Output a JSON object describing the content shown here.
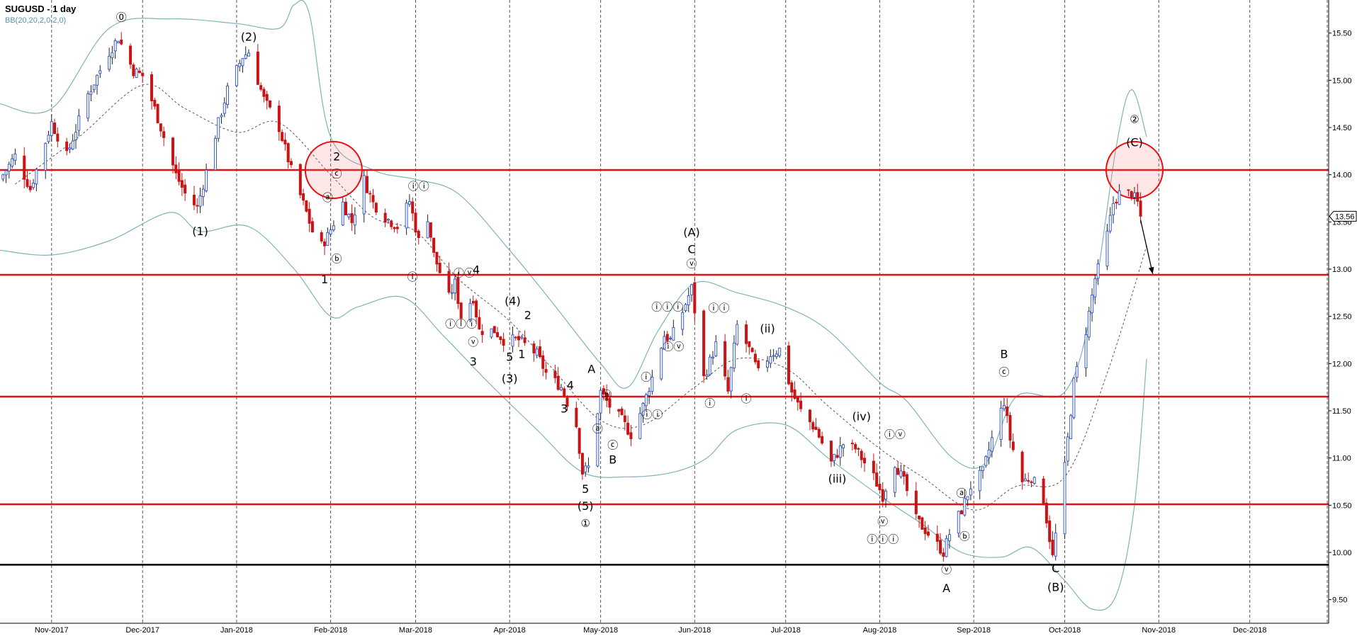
{
  "window": {
    "title": "SUGUSD - 1 day",
    "indicator": "BB(20,20,2,0,2,0)"
  },
  "colors": {
    "up_candle": "#3b5fc9",
    "down_candle": "#c81414",
    "bollinger": "#7fb3b8",
    "middle_band": "#555555",
    "resistance_line": "#e81010",
    "support_line": "#000000",
    "grid": "#555555",
    "price_tag": "#000000"
  },
  "chart_data": {
    "type": "candlestick",
    "title": "SUGUSD - 1 day",
    "indicator": "BB(20,20,2,0,2,0)",
    "ylim": [
      9.25,
      15.85
    ],
    "y_ticks": [
      "15.50",
      "15.00",
      "14.50",
      "14.00",
      "13.50",
      "13.00",
      "12.50",
      "12.00",
      "11.50",
      "11.00",
      "10.50",
      "10.00",
      "9.50"
    ],
    "x_ticks": [
      "Nov-2017",
      "Dec-2017",
      "Jan-2018",
      "Feb-2018",
      "Mar-2018",
      "Apr-2018",
      "May-2018",
      "Jun-2018",
      "Jul-2018",
      "Aug-2018",
      "Sep-2018",
      "Oct-2018",
      "Nov-2018",
      "Dec-2018"
    ],
    "x_domain": [
      "2017-10-15",
      "2018-12-27"
    ],
    "last_price": "13.56",
    "horizontal_lines": [
      {
        "value": 14.05,
        "style": "resistance"
      },
      {
        "value": 12.94,
        "style": "resistance"
      },
      {
        "value": 11.65,
        "style": "resistance"
      },
      {
        "value": 10.51,
        "style": "resistance"
      },
      {
        "value": 9.87,
        "style": "support"
      }
    ],
    "circles": [
      {
        "date": "2018-02-02",
        "price": 14.05
      },
      {
        "date": "2018-10-24",
        "price": 14.05
      }
    ],
    "arrow": {
      "from": [
        "2018-10-26",
        13.52
      ],
      "to": [
        "2018-10-30",
        12.95
      ]
    },
    "price_path": [
      [
        "2017-10-15",
        13.95
      ],
      [
        "2017-10-20",
        14.2
      ],
      [
        "2017-10-25",
        13.85
      ],
      [
        "2017-11-01",
        14.55
      ],
      [
        "2017-11-06",
        14.2
      ],
      [
        "2017-11-13",
        14.85
      ],
      [
        "2017-11-20",
        15.3
      ],
      [
        "2017-11-23",
        15.45
      ],
      [
        "2017-11-28",
        15.1
      ],
      [
        "2017-12-01",
        15.05
      ],
      [
        "2017-12-05",
        14.7
      ],
      [
        "2017-12-08",
        14.4
      ],
      [
        "2017-12-12",
        14.0
      ],
      [
        "2017-12-15",
        13.8
      ],
      [
        "2017-12-19",
        13.65
      ],
      [
        "2017-12-21",
        13.9
      ],
      [
        "2017-12-26",
        14.55
      ],
      [
        "2017-12-29",
        14.9
      ],
      [
        "2018-01-03",
        15.25
      ],
      [
        "2018-01-05",
        15.3
      ],
      [
        "2018-01-10",
        14.8
      ],
      [
        "2018-01-15",
        14.5
      ],
      [
        "2018-01-19",
        14.05
      ],
      [
        "2018-01-24",
        13.6
      ],
      [
        "2018-01-28",
        13.2
      ],
      [
        "2018-01-31",
        13.35
      ],
      [
        "2018-02-05",
        13.7
      ],
      [
        "2018-02-08",
        13.5
      ],
      [
        "2018-02-12",
        13.95
      ],
      [
        "2018-02-15",
        13.7
      ],
      [
        "2018-02-19",
        13.55
      ],
      [
        "2018-02-23",
        13.45
      ],
      [
        "2018-02-27",
        13.72
      ],
      [
        "2018-03-02",
        13.3
      ],
      [
        "2018-03-05",
        13.55
      ],
      [
        "2018-03-07",
        13.15
      ],
      [
        "2018-03-12",
        12.7
      ],
      [
        "2018-03-14",
        12.85
      ],
      [
        "2018-03-16",
        12.5
      ],
      [
        "2018-03-20",
        12.7
      ],
      [
        "2018-03-22",
        12.35
      ],
      [
        "2018-03-27",
        12.35
      ],
      [
        "2018-03-30",
        12.25
      ],
      [
        "2018-04-04",
        12.25
      ],
      [
        "2018-04-10",
        12.1
      ],
      [
        "2018-04-13",
        11.9
      ],
      [
        "2018-04-18",
        11.75
      ],
      [
        "2018-04-23",
        11.35
      ],
      [
        "2018-04-25",
        10.85
      ],
      [
        "2018-04-27",
        10.9
      ],
      [
        "2018-05-01",
        11.7
      ],
      [
        "2018-05-04",
        11.55
      ],
      [
        "2018-05-08",
        11.4
      ],
      [
        "2018-05-11",
        11.25
      ],
      [
        "2018-05-15",
        11.55
      ],
      [
        "2018-05-18",
        11.85
      ],
      [
        "2018-05-22",
        12.3
      ],
      [
        "2018-05-24",
        12.25
      ],
      [
        "2018-05-28",
        12.55
      ],
      [
        "2018-05-31",
        12.8
      ],
      [
        "2018-06-04",
        11.85
      ],
      [
        "2018-06-08",
        12.2
      ],
      [
        "2018-06-12",
        11.7
      ],
      [
        "2018-06-15",
        12.4
      ],
      [
        "2018-06-19",
        12.15
      ],
      [
        "2018-06-22",
        11.9
      ],
      [
        "2018-06-26",
        12.1
      ],
      [
        "2018-06-29",
        12.15
      ],
      [
        "2018-07-03",
        11.7
      ],
      [
        "2018-07-06",
        11.5
      ],
      [
        "2018-07-11",
        11.3
      ],
      [
        "2018-07-16",
        10.95
      ],
      [
        "2018-07-20",
        11.15
      ],
      [
        "2018-07-24",
        11.1
      ],
      [
        "2018-07-30",
        10.8
      ],
      [
        "2018-08-02",
        10.6
      ],
      [
        "2018-08-06",
        10.95
      ],
      [
        "2018-08-09",
        10.75
      ],
      [
        "2018-08-13",
        10.35
      ],
      [
        "2018-08-17",
        10.2
      ],
      [
        "2018-08-22",
        10.0
      ],
      [
        "2018-08-24",
        10.2
      ],
      [
        "2018-08-28",
        10.45
      ],
      [
        "2018-08-31",
        10.7
      ],
      [
        "2018-09-04",
        10.85
      ],
      [
        "2018-09-07",
        11.2
      ],
      [
        "2018-09-11",
        11.6
      ],
      [
        "2018-09-13",
        11.2
      ],
      [
        "2018-09-17",
        10.75
      ],
      [
        "2018-09-20",
        10.8
      ],
      [
        "2018-09-24",
        10.55
      ],
      [
        "2018-09-27",
        9.95
      ],
      [
        "2018-10-01",
        10.9
      ],
      [
        "2018-10-04",
        11.8
      ],
      [
        "2018-10-08",
        12.35
      ],
      [
        "2018-10-11",
        12.9
      ],
      [
        "2018-10-14",
        13.2
      ],
      [
        "2018-10-17",
        13.7
      ],
      [
        "2018-10-19",
        13.8
      ],
      [
        "2018-10-23",
        13.8
      ],
      [
        "2018-10-25",
        13.7
      ],
      [
        "2018-10-26",
        13.56
      ]
    ],
    "bollinger_upper": [
      [
        "2017-10-15",
        14.75
      ],
      [
        "2017-11-01",
        14.7
      ],
      [
        "2017-11-20",
        15.55
      ],
      [
        "2017-12-10",
        15.65
      ],
      [
        "2018-01-01",
        15.6
      ],
      [
        "2018-01-15",
        15.55
      ],
      [
        "2018-01-20",
        15.8
      ],
      [
        "2018-01-25",
        15.7
      ],
      [
        "2018-02-01",
        14.4
      ],
      [
        "2018-02-15",
        14.05
      ],
      [
        "2018-03-01",
        13.95
      ],
      [
        "2018-03-15",
        13.8
      ],
      [
        "2018-04-01",
        13.2
      ],
      [
        "2018-04-15",
        12.65
      ],
      [
        "2018-05-01",
        12.0
      ],
      [
        "2018-05-10",
        11.75
      ],
      [
        "2018-05-20",
        12.35
      ],
      [
        "2018-06-01",
        12.85
      ],
      [
        "2018-06-15",
        12.75
      ],
      [
        "2018-07-01",
        12.6
      ],
      [
        "2018-07-15",
        12.35
      ],
      [
        "2018-08-01",
        11.8
      ],
      [
        "2018-08-10",
        11.6
      ],
      [
        "2018-08-25",
        11.0
      ],
      [
        "2018-09-05",
        10.95
      ],
      [
        "2018-09-15",
        11.65
      ],
      [
        "2018-10-01",
        11.7
      ],
      [
        "2018-10-10",
        12.6
      ],
      [
        "2018-10-18",
        14.3
      ],
      [
        "2018-10-23",
        14.9
      ],
      [
        "2018-10-28",
        14.4
      ]
    ],
    "bollinger_lower": [
      [
        "2017-10-15",
        13.2
      ],
      [
        "2017-11-01",
        13.15
      ],
      [
        "2017-11-20",
        13.3
      ],
      [
        "2017-12-10",
        13.6
      ],
      [
        "2017-12-20",
        13.4
      ],
      [
        "2018-01-05",
        13.45
      ],
      [
        "2018-01-20",
        13.0
      ],
      [
        "2018-02-01",
        12.5
      ],
      [
        "2018-02-10",
        12.6
      ],
      [
        "2018-02-25",
        12.7
      ],
      [
        "2018-03-10",
        12.3
      ],
      [
        "2018-03-25",
        11.8
      ],
      [
        "2018-04-10",
        11.3
      ],
      [
        "2018-04-25",
        10.85
      ],
      [
        "2018-05-10",
        10.8
      ],
      [
        "2018-05-25",
        10.85
      ],
      [
        "2018-06-05",
        11.0
      ],
      [
        "2018-06-15",
        11.3
      ],
      [
        "2018-07-01",
        11.35
      ],
      [
        "2018-07-15",
        11.0
      ],
      [
        "2018-08-01",
        10.6
      ],
      [
        "2018-08-15",
        10.3
      ],
      [
        "2018-08-28",
        10.0
      ],
      [
        "2018-09-10",
        9.95
      ],
      [
        "2018-09-20",
        10.05
      ],
      [
        "2018-10-01",
        9.7
      ],
      [
        "2018-10-10",
        9.4
      ],
      [
        "2018-10-18",
        9.55
      ],
      [
        "2018-10-24",
        10.5
      ],
      [
        "2018-10-28",
        12.05
      ]
    ],
    "bollinger_middle": [
      [
        "2017-10-20",
        13.9
      ],
      [
        "2017-11-10",
        14.4
      ],
      [
        "2017-12-01",
        14.95
      ],
      [
        "2017-12-15",
        14.7
      ],
      [
        "2018-01-01",
        14.45
      ],
      [
        "2018-01-15",
        14.55
      ],
      [
        "2018-02-01",
        14.0
      ],
      [
        "2018-02-15",
        13.55
      ],
      [
        "2018-03-01",
        13.4
      ],
      [
        "2018-03-15",
        12.9
      ],
      [
        "2018-04-01",
        12.45
      ],
      [
        "2018-04-15",
        11.95
      ],
      [
        "2018-05-01",
        11.4
      ],
      [
        "2018-05-15",
        11.35
      ],
      [
        "2018-06-01",
        11.75
      ],
      [
        "2018-06-15",
        12.05
      ],
      [
        "2018-07-01",
        11.95
      ],
      [
        "2018-07-15",
        11.55
      ],
      [
        "2018-08-01",
        11.1
      ],
      [
        "2018-08-15",
        10.8
      ],
      [
        "2018-09-01",
        10.45
      ],
      [
        "2018-09-15",
        10.7
      ],
      [
        "2018-10-01",
        10.8
      ],
      [
        "2018-10-15",
        11.9
      ],
      [
        "2018-10-28",
        13.25
      ]
    ],
    "wave_labels": [
      {
        "text": "⓪",
        "date": "2017-11-24",
        "price": 15.63
      },
      {
        "text": "(2)",
        "date": "2018-01-05",
        "price": 15.42
      },
      {
        "text": "(1)",
        "date": "2017-12-20",
        "price": 13.36
      },
      {
        "text": "1",
        "date": "2018-01-30",
        "price": 12.85
      },
      {
        "text": "2",
        "date": "2018-02-03",
        "price": 14.15
      },
      {
        "text": "ⓒ",
        "date": "2018-02-03",
        "price": 13.97
      },
      {
        "text": "ⓐ",
        "date": "2018-01-31",
        "price": 13.72
      },
      {
        "text": "ⓑ",
        "date": "2018-02-03",
        "price": 13.07
      },
      {
        "text": "ⓘⓘ",
        "date": "2018-03-02",
        "price": 13.84
      },
      {
        "text": "ⓘ",
        "date": "2018-02-28",
        "price": 12.88
      },
      {
        "text": "ⓘⓥ",
        "date": "2018-03-17",
        "price": 12.92
      },
      {
        "text": "4",
        "date": "2018-03-21",
        "price": 12.95
      },
      {
        "text": "ⓘⓘⓘ",
        "date": "2018-03-16",
        "price": 12.38
      },
      {
        "text": "ⓥ",
        "date": "2018-03-20",
        "price": 12.19
      },
      {
        "text": "3",
        "date": "2018-03-20",
        "price": 11.98
      },
      {
        "text": "(4)",
        "date": "2018-04-02",
        "price": 12.62
      },
      {
        "text": "2",
        "date": "2018-04-07",
        "price": 12.47
      },
      {
        "text": "5",
        "date": "2018-04-01",
        "price": 12.03
      },
      {
        "text": "1",
        "date": "2018-04-05",
        "price": 12.06
      },
      {
        "text": "(3)",
        "date": "2018-04-01",
        "price": 11.8
      },
      {
        "text": "4",
        "date": "2018-04-21",
        "price": 11.73
      },
      {
        "text": "3",
        "date": "2018-04-19",
        "price": 11.48
      },
      {
        "text": "A",
        "date": "2018-04-28",
        "price": 11.9
      },
      {
        "text": "ⓑ",
        "date": "2018-05-03",
        "price": 11.63
      },
      {
        "text": "ⓐ",
        "date": "2018-04-30",
        "price": 11.27
      },
      {
        "text": "ⓒ",
        "date": "2018-05-05",
        "price": 11.1
      },
      {
        "text": "B",
        "date": "2018-05-05",
        "price": 10.94
      },
      {
        "text": "5",
        "date": "2018-04-26",
        "price": 10.63
      },
      {
        "text": "(5)",
        "date": "2018-04-26",
        "price": 10.45
      },
      {
        "text": "①",
        "date": "2018-04-26",
        "price": 10.27
      },
      {
        "text": "ⓘ",
        "date": "2018-05-16",
        "price": 11.82
      },
      {
        "text": "ⓘⓘ",
        "date": "2018-05-18",
        "price": 11.42
      },
      {
        "text": "ⓘⓘⓘ",
        "date": "2018-05-23",
        "price": 12.56
      },
      {
        "text": "ⓘⓥ",
        "date": "2018-05-25",
        "price": 12.14
      },
      {
        "text": "(A)",
        "date": "2018-05-31",
        "price": 13.35
      },
      {
        "text": "C",
        "date": "2018-05-31",
        "price": 13.17
      },
      {
        "text": "ⓥ",
        "date": "2018-05-31",
        "price": 13.02
      },
      {
        "text": "ⓘⓘ",
        "date": "2018-06-09",
        "price": 12.55
      },
      {
        "text": "ⓘ",
        "date": "2018-06-06",
        "price": 11.54
      },
      {
        "text": "ⓘ",
        "date": "2018-06-18",
        "price": 11.59
      },
      {
        "text": "(ii)",
        "date": "2018-06-25",
        "price": 12.33
      },
      {
        "text": "(iv)",
        "date": "2018-07-26",
        "price": 11.4
      },
      {
        "text": "ⓘⓥ",
        "date": "2018-08-06",
        "price": 11.21
      },
      {
        "text": "(iii)",
        "date": "2018-07-18",
        "price": 10.74
      },
      {
        "text": "ⓥ",
        "date": "2018-08-02",
        "price": 10.29
      },
      {
        "text": "ⓘⓘⓘ",
        "date": "2018-08-02",
        "price": 10.1
      },
      {
        "text": "ⓐ",
        "date": "2018-08-28",
        "price": 10.59
      },
      {
        "text": "ⓑ",
        "date": "2018-08-29",
        "price": 10.13
      },
      {
        "text": "ⓥ",
        "date": "2018-08-23",
        "price": 9.78
      },
      {
        "text": "A",
        "date": "2018-08-23",
        "price": 9.58
      },
      {
        "text": "B",
        "date": "2018-09-11",
        "price": 12.06
      },
      {
        "text": "ⓒ",
        "date": "2018-09-11",
        "price": 11.87
      },
      {
        "text": "C",
        "date": "2018-09-28",
        "price": 9.79
      },
      {
        "text": "(B)",
        "date": "2018-09-28",
        "price": 9.59
      },
      {
        "text": "②",
        "date": "2018-10-24",
        "price": 14.55
      },
      {
        "text": "(C)",
        "date": "2018-10-24",
        "price": 14.3
      }
    ]
  }
}
